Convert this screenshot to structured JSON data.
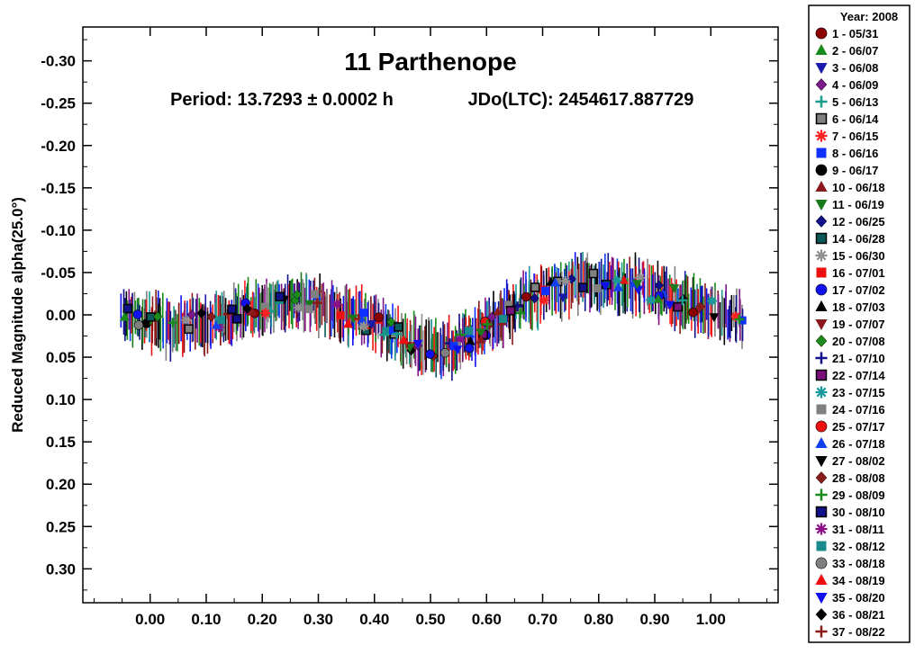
{
  "chart_data": {
    "type": "scatter",
    "title": "11 Parthenope",
    "subtitle_period": "Period: 13.7293 ± 0.0002 h",
    "subtitle_epoch": "JDo(LTC): 2454617.887729",
    "xlabel": "",
    "ylabel": "Reduced Magnitude alpha(25.0°)",
    "xlim": [
      -0.12,
      1.12
    ],
    "ylim": [
      0.34,
      -0.34
    ],
    "y_inverted": true,
    "x_ticks": [
      "0.00",
      "0.10",
      "0.20",
      "0.30",
      "0.40",
      "0.50",
      "0.60",
      "0.70",
      "0.80",
      "0.90",
      "1.00"
    ],
    "y_ticks": [
      "-0.30",
      "-0.25",
      "-0.20",
      "-0.15",
      "-0.10",
      "-0.05",
      "0.00",
      "0.05",
      "0.10",
      "0.15",
      "0.20",
      "0.25",
      "0.30"
    ],
    "grid": false,
    "legend_position": "right-outside",
    "legend_title": "Year: 2008",
    "series": [
      {
        "name": "1 - 05/31",
        "color": "#8b0000",
        "marker": "circle"
      },
      {
        "name": "2 - 06/07",
        "color": "#1a8a1a",
        "marker": "triangle-up"
      },
      {
        "name": "3 - 06/08",
        "color": "#1a1aa8",
        "marker": "triangle-down"
      },
      {
        "name": "4 - 06/09",
        "color": "#7a1a8a",
        "marker": "diamond"
      },
      {
        "name": "5 - 06/13",
        "color": "#1a9a8a",
        "marker": "plus"
      },
      {
        "name": "6 - 06/14",
        "color": "#808080",
        "marker": "square-outline"
      },
      {
        "name": "7 - 06/15",
        "color": "#ff2020",
        "marker": "asterisk"
      },
      {
        "name": "8 - 06/16",
        "color": "#1030ff",
        "marker": "square"
      },
      {
        "name": "9 - 06/17",
        "color": "#000000",
        "marker": "circle"
      },
      {
        "name": "10 - 06/18",
        "color": "#8b1a1a",
        "marker": "triangle-up"
      },
      {
        "name": "11 - 06/19",
        "color": "#1a7a1a",
        "marker": "triangle-down"
      },
      {
        "name": "12 - 06/25",
        "color": "#10108a",
        "marker": "diamond"
      },
      {
        "name": "14 - 06/28",
        "color": "#0a5a5a",
        "marker": "square-outline"
      },
      {
        "name": "15 - 06/30",
        "color": "#909090",
        "marker": "asterisk"
      },
      {
        "name": "16 - 07/01",
        "color": "#ee1010",
        "marker": "square"
      },
      {
        "name": "17 - 07/02",
        "color": "#1010ee",
        "marker": "circle"
      },
      {
        "name": "18 - 07/03",
        "color": "#000000",
        "marker": "triangle-up"
      },
      {
        "name": "19 - 07/07",
        "color": "#8b1a1a",
        "marker": "triangle-down"
      },
      {
        "name": "20 - 07/08",
        "color": "#1a8a1a",
        "marker": "diamond"
      },
      {
        "name": "21 - 07/10",
        "color": "#10108a",
        "marker": "plus"
      },
      {
        "name": "22 - 07/14",
        "color": "#7a107a",
        "marker": "square-outline"
      },
      {
        "name": "23 - 07/15",
        "color": "#1a9a9a",
        "marker": "asterisk"
      },
      {
        "name": "24 - 07/16",
        "color": "#808080",
        "marker": "square"
      },
      {
        "name": "25 - 07/17",
        "color": "#ee1010",
        "marker": "circle"
      },
      {
        "name": "26 - 07/18",
        "color": "#1040ee",
        "marker": "triangle-up"
      },
      {
        "name": "27 - 08/02",
        "color": "#000000",
        "marker": "triangle-down"
      },
      {
        "name": "28 - 08/08",
        "color": "#8b1a1a",
        "marker": "diamond"
      },
      {
        "name": "29 - 08/09",
        "color": "#1a8a1a",
        "marker": "plus"
      },
      {
        "name": "30 - 08/10",
        "color": "#10108a",
        "marker": "square-outline"
      },
      {
        "name": "31 - 08/11",
        "color": "#8a108a",
        "marker": "asterisk"
      },
      {
        "name": "32 - 08/12",
        "color": "#1a8a8a",
        "marker": "square"
      },
      {
        "name": "33 - 08/18",
        "color": "#808080",
        "marker": "circle"
      },
      {
        "name": "34 - 08/19",
        "color": "#ee1010",
        "marker": "triangle-up"
      },
      {
        "name": "35 - 08/20",
        "color": "#1010ee",
        "marker": "triangle-down"
      },
      {
        "name": "36 - 08/21",
        "color": "#000000",
        "marker": "diamond"
      },
      {
        "name": "37 - 08/22",
        "color": "#8b1a1a",
        "marker": "plus"
      }
    ],
    "lightcurve_shape": {
      "phase": [
        -0.05,
        0.0,
        0.05,
        0.1,
        0.15,
        0.2,
        0.25,
        0.28,
        0.33,
        0.38,
        0.43,
        0.48,
        0.53,
        0.58,
        0.63,
        0.68,
        0.73,
        0.78,
        0.83,
        0.88,
        0.93,
        0.98,
        1.03,
        1.06
      ],
      "magnitude": [
        0.0,
        0.01,
        0.015,
        0.008,
        0.0,
        -0.01,
        -0.018,
        -0.018,
        -0.005,
        0.005,
        0.02,
        0.035,
        0.04,
        0.025,
        0.0,
        -0.02,
        -0.032,
        -0.038,
        -0.037,
        -0.032,
        -0.022,
        -0.01,
        0.0,
        0.005
      ],
      "scatter_halfwidth": 0.012,
      "errorbar_halfheight": 0.025
    }
  }
}
